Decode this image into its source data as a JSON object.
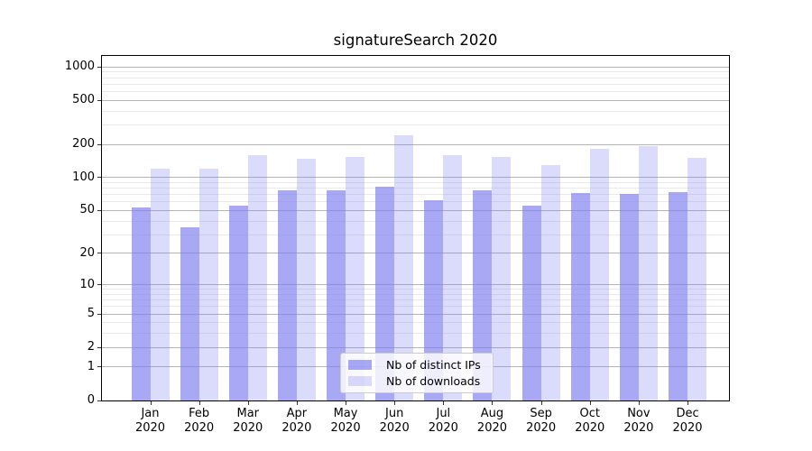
{
  "chart_data": {
    "type": "bar",
    "title": "signatureSearch 2020",
    "categories": [
      "Jan 2020",
      "Feb 2020",
      "Mar 2020",
      "Apr 2020",
      "May 2020",
      "Jun 2020",
      "Jul 2020",
      "Aug 2020",
      "Sep 2020",
      "Oct 2020",
      "Nov 2020",
      "Dec 2020"
    ],
    "series": [
      {
        "name": "Nb of distinct IPs",
        "color": "rgba(123,123,240,0.66)",
        "values": [
          53,
          35,
          55,
          77,
          77,
          82,
          62,
          77,
          56,
          73,
          71,
          74
        ]
      },
      {
        "name": "Nb of downloads",
        "color": "rgba(123,123,240,0.27)",
        "values": [
          120,
          120,
          160,
          148,
          153,
          240,
          160,
          153,
          129,
          183,
          194,
          151
        ]
      }
    ],
    "yscale": "log1p",
    "ylim": [
      0,
      1253
    ],
    "yticks": [
      0,
      1,
      2,
      5,
      10,
      20,
      50,
      100,
      200,
      500,
      1000
    ],
    "yminorticks": [
      3,
      4,
      6,
      7,
      8,
      9,
      30,
      40,
      60,
      70,
      80,
      90,
      300,
      400,
      600,
      700,
      800,
      900
    ],
    "grid": "both",
    "legend_position": "lower center",
    "colors": {
      "bar_dark_on_white": "#a8a8f5",
      "bar_light_on_white": "#dbdbfb",
      "grid_major": "#b5b5b5",
      "grid_minor": "#e9e9e9",
      "spine": "#000000"
    }
  }
}
